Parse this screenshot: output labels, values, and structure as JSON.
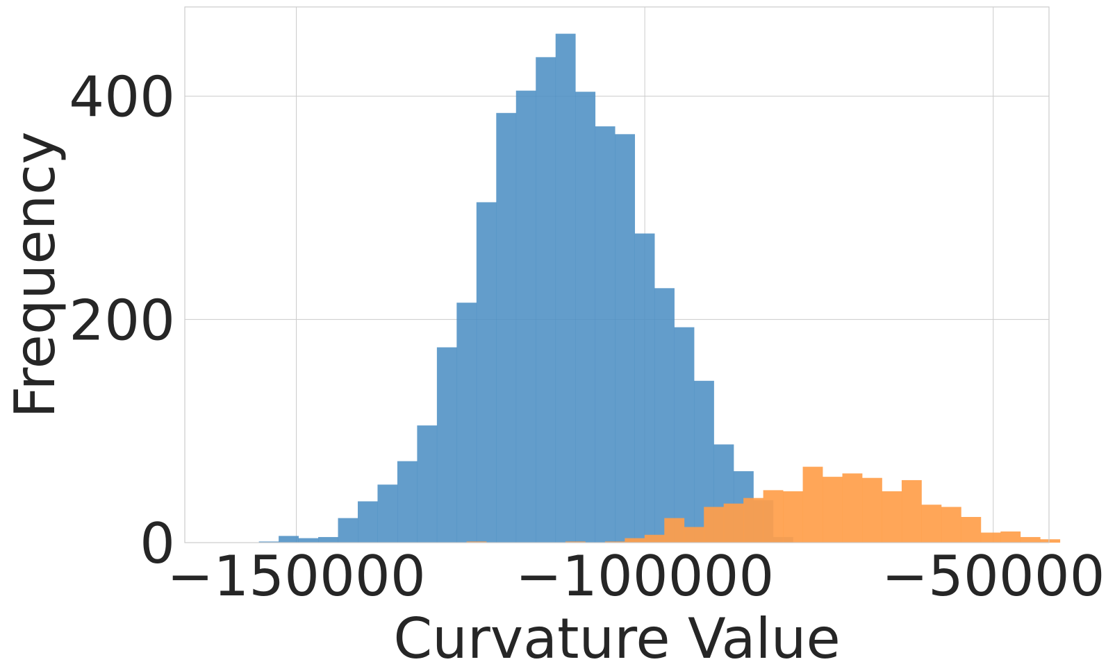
{
  "chart_data": {
    "type": "bar",
    "title": "",
    "xlabel": "Curvature Value",
    "ylabel": "Frequency",
    "xlim": [
      -166000,
      -42000
    ],
    "ylim": [
      0,
      480
    ],
    "xticks": [
      -150000,
      -100000,
      -50000
    ],
    "xtick_labels": [
      "−150000",
      "−100000",
      "−50000"
    ],
    "yticks": [
      0,
      200,
      400
    ],
    "ytick_labels": [
      "0",
      "200",
      "400"
    ],
    "grid": true,
    "legend": "none",
    "series": [
      {
        "color": "#4c8ec3",
        "opacity": 0.87,
        "bin_width": 2838,
        "bin_start": -155370,
        "values": [
          1,
          6,
          4,
          5,
          22,
          37,
          52,
          73,
          105,
          175,
          215,
          305,
          385,
          405,
          435,
          456,
          404,
          373,
          366,
          277,
          228,
          193,
          145,
          88,
          64,
          38,
          5
        ]
      },
      {
        "color": "#ff9e4a",
        "opacity": 0.92,
        "bin_width": 2838,
        "bin_start": -125575,
        "values": [
          1,
          0,
          0,
          0,
          0,
          1,
          0,
          1,
          4,
          7,
          22,
          14,
          32,
          35,
          40,
          47,
          46,
          68,
          59,
          62,
          58,
          46,
          56,
          34,
          32,
          23,
          9,
          10,
          5,
          3
        ]
      }
    ]
  }
}
